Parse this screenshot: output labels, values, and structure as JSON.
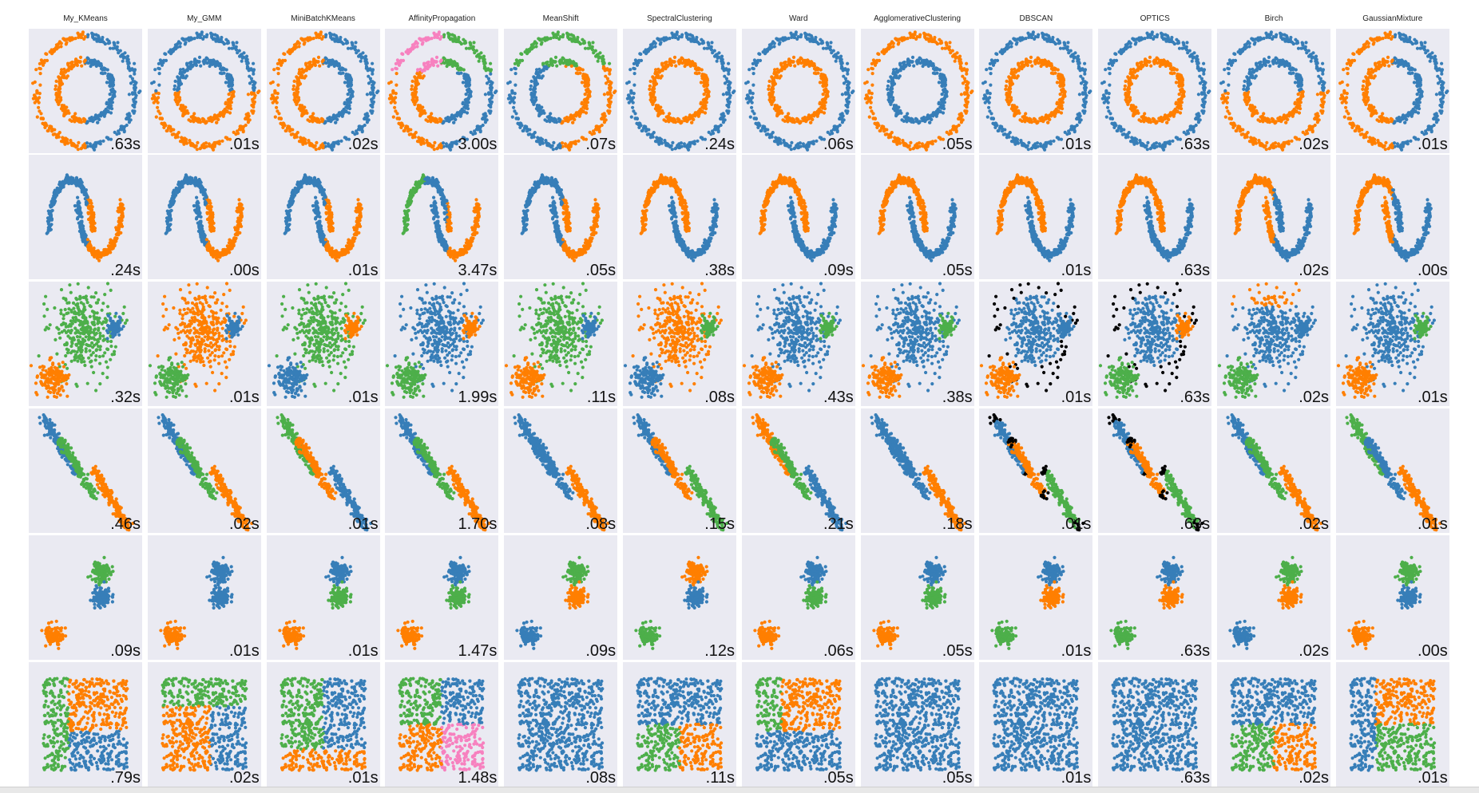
{
  "palette": {
    "blue": "#377eb8",
    "orange": "#ff7f00",
    "green": "#4daf4a",
    "pink": "#f781bf",
    "noise": "#000000",
    "panel_bg": "#eaeaf2"
  },
  "chart_data": {
    "type": "scatter",
    "layout": "grid of 6 dataset rows x 12 clustering-algorithm columns",
    "algorithms": [
      "My_KMeans",
      "My_GMM",
      "MiniBatchKMeans",
      "AffinityPropagation",
      "MeanShift",
      "SpectralClustering",
      "Ward",
      "AgglomerativeClustering",
      "DBSCAN",
      "OPTICS",
      "Birch",
      "GaussianMixture"
    ],
    "datasets": [
      {
        "shape": "circles",
        "labels": [
          "blue-right|orange-left",
          "blue-top|orange-bottom",
          "blue-right|orange-left",
          "outer-rings-4clusters",
          "green-top|blue-left|orange-right",
          "blue-outer|orange-inner",
          "blue-outer|orange-inner-left",
          "orange-outer|blue-inner",
          "blue-outer|orange-inner",
          "blue-outer|orange-inner",
          "blue-upper|orange-lower",
          "blue-right|orange-left"
        ],
        "timings": [
          ".63s",
          ".01s",
          ".02s",
          "3.00s",
          ".07s",
          ".24s",
          ".06s",
          ".05s",
          ".01s",
          ".63s",
          ".02s",
          ".01s"
        ]
      },
      {
        "shape": "moons",
        "labels": [
          "blue-left|orange-right",
          "blue-left|orange-right",
          "blue-left|orange-right",
          "green-left|blue-middle|orange-right",
          "blue-left|orange-right",
          "orange-top|blue-bottom",
          "orange-top|blue-bottom",
          "orange-top|blue-bottom",
          "orange-top|blue-bottom",
          "orange-top|blue-bottom",
          "orange-left|blue-right",
          "orange-left|blue-right"
        ],
        "timings": [
          ".24s",
          ".00s",
          ".01s",
          "3.47s",
          ".05s",
          ".38s",
          ".09s",
          ".05s",
          ".01s",
          ".63s",
          ".02s",
          ".00s"
        ]
      },
      {
        "shape": "varied",
        "labels": [
          "green-big|orange-lowleft|blue-right",
          "orange-big|green-lowleft|blue-right",
          "green-big|blue-lowleft|orange-right",
          "blue-big|green-lowleft|orange-right",
          "green-big|orange-lowleft|blue-right",
          "orange-big|blue-lowleft|green-right",
          "blue-big|orange-lowleft|green-right",
          "blue-big|orange-lowleft|green-right",
          "blue-big|orange-lowleft|blue-right|noise",
          "blue-big|green-lowleft|orange-right|noise",
          "blue-big|green-lowleft|blue-right|orange-top",
          "blue-big|orange-lowleft|green-right"
        ],
        "timings": [
          ".32s",
          ".01s",
          ".01s",
          "1.99s",
          ".11s",
          ".08s",
          ".43s",
          ".38s",
          ".01s",
          ".63s",
          ".02s",
          ".01s"
        ]
      },
      {
        "shape": "aniso",
        "labels": [
          "blue-top|green-mid|orange-right",
          "blue-top|green-mid|orange-right",
          "green-top|orange-mid|blue-right",
          "blue-top|green-mid|orange-right",
          "blue-top|blue-mid|orange-right",
          "blue-top|orange-mid|green-right",
          "orange-top|green-mid|blue-right",
          "blue-top|blue-mid|orange-right",
          "blue-top|orange-mid|green-right|noise",
          "blue-top|orange-mid|green-right|noise",
          "blue-top|green-mid|orange-right",
          "green-top|blue-mid|orange-right"
        ],
        "timings": [
          ".46s",
          ".02s",
          ".01s",
          "1.70s",
          ".08s",
          ".15s",
          ".21s",
          ".18s",
          ".01s",
          ".63s",
          ".02s",
          ".01s"
        ]
      },
      {
        "shape": "blobs",
        "labels": [
          "green|blue|orange",
          "blue|blue|orange",
          "blue|green|orange",
          "blue|green|orange",
          "green|orange|blue",
          "orange|blue|green",
          "blue|green|orange",
          "blue|green|orange",
          "blue|orange|green",
          "blue|orange|green",
          "green|orange|blue",
          "green|blue|orange"
        ],
        "timings": [
          ".09s",
          ".01s",
          ".01s",
          "1.47s",
          ".09s",
          ".12s",
          ".06s",
          ".05s",
          ".01s",
          ".63s",
          ".02s",
          ".00s"
        ]
      },
      {
        "shape": "uniform",
        "labels": [
          "green-left|orange-top|blue-bottom",
          "green-top|orange-lowleft|blue-right",
          "green-topleft|blue-right|orange-bottom",
          "green-TL|blue-TR|orange-BL|pink-BR",
          "all-blue",
          "blue-top|green-BL|orange-BR",
          "green-left|orange-topright|blue-bottom",
          "all-blue",
          "all-blue",
          "all-blue",
          "blue-top|green-BL|orange-BR",
          "blue-left|orange-TR|green-BR"
        ],
        "timings": [
          ".79s",
          ".02s",
          ".01s",
          "1.48s",
          ".08s",
          ".11s",
          ".05s",
          ".05s",
          ".01s",
          ".63s",
          ".02s",
          ".01s"
        ]
      }
    ],
    "grid": false,
    "xlabel": "",
    "ylabel": ""
  }
}
